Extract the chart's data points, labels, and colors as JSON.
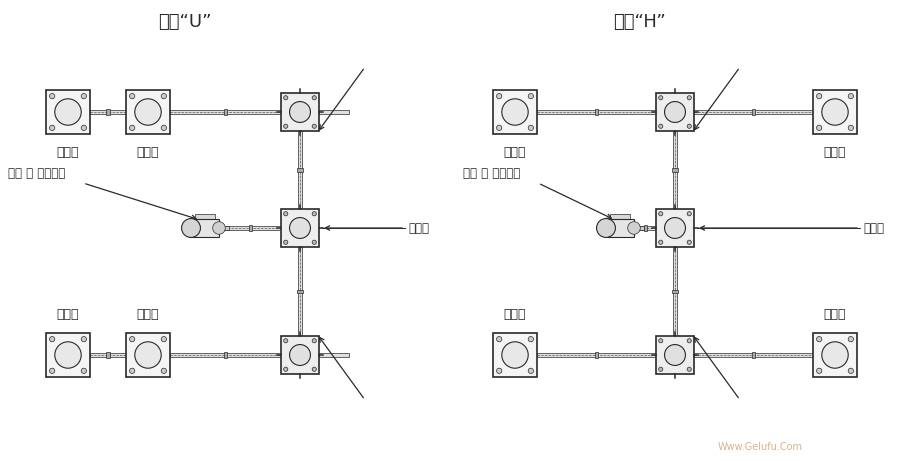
{
  "title_left": "布局“U”",
  "title_right": "布局“H”",
  "bg_color": "#ffffff",
  "line_color": "#2a2a2a",
  "label_shengjiang": "升降机",
  "label_dianji": "电机 或 手轮驱动",
  "label_chilun": "齿轮筱",
  "watermark": "Www.Gelufu.Com",
  "title_fontsize": 13,
  "label_fontsize": 9
}
